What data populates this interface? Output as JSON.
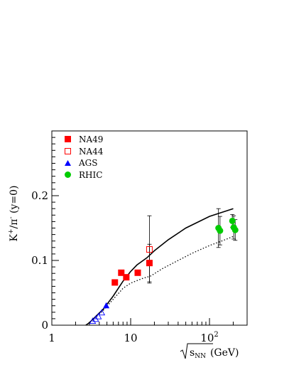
{
  "chart_data": {
    "type": "scatter",
    "title": "",
    "x_scale": "log",
    "xlim": [
      1,
      300
    ],
    "ylim": [
      0,
      0.3
    ],
    "grid": false,
    "legend_placement": "top-left",
    "xlabel": {
      "radical": "s",
      "subscript": "NN",
      "unit": "(GeV)"
    },
    "ylabel": {
      "main": "K",
      "sup1": "+",
      "mid": "/π",
      "sup2": "-",
      "tail": " (y=0)"
    },
    "x_ticks": [
      {
        "value": 1,
        "label": "1"
      },
      {
        "value": 10,
        "label": "10"
      },
      {
        "value": 100,
        "label": "10",
        "sup": "2"
      }
    ],
    "y_ticks": [
      {
        "value": 0,
        "label": "0"
      },
      {
        "value": 0.1,
        "label": "0.1"
      },
      {
        "value": 0.2,
        "label": "0.2"
      }
    ],
    "series": [
      {
        "name": "NA49",
        "marker": "filled-square",
        "color": "#ff0000",
        "points": [
          {
            "x": 6.3,
            "y": 0.066
          },
          {
            "x": 7.6,
            "y": 0.081
          },
          {
            "x": 8.8,
            "y": 0.074
          },
          {
            "x": 12.3,
            "y": 0.081
          },
          {
            "x": 17.3,
            "y": 0.096,
            "err": 0.029
          }
        ]
      },
      {
        "name": "NA44",
        "marker": "open-square",
        "color": "#ff0000",
        "points": [
          {
            "x": 17.3,
            "y": 0.117,
            "err": 0.052
          }
        ]
      },
      {
        "name": "AGS",
        "marker": "filled-triangle",
        "color": "#0000ff",
        "points": [
          {
            "x": 4.9,
            "y": 0.03
          }
        ]
      },
      {
        "name": "AGS (open)",
        "marker": "open-triangle",
        "color": "#0000ff",
        "points": [
          {
            "x": 3.3,
            "y": 0.006
          },
          {
            "x": 3.6,
            "y": 0.009
          },
          {
            "x": 3.9,
            "y": 0.013
          },
          {
            "x": 4.3,
            "y": 0.019
          }
        ]
      },
      {
        "name": "RHIC",
        "marker": "filled-circle",
        "color": "#00cc00",
        "points": [
          {
            "x": 130,
            "y": 0.15,
            "err": 0.03
          },
          {
            "x": 136,
            "y": 0.146,
            "err": 0.022
          },
          {
            "x": 195,
            "y": 0.161,
            "err": 0.01
          },
          {
            "x": 203,
            "y": 0.151,
            "err": 0.018
          },
          {
            "x": 212,
            "y": 0.147,
            "err": 0.016
          }
        ]
      }
    ],
    "curves": [
      {
        "style": "solid",
        "color": "#000000",
        "points": [
          [
            2.7,
            0.0
          ],
          [
            3.0,
            0.004
          ],
          [
            3.5,
            0.012
          ],
          [
            4.5,
            0.025
          ],
          [
            6,
            0.045
          ],
          [
            8,
            0.068
          ],
          [
            10,
            0.083
          ],
          [
            12,
            0.093
          ],
          [
            16,
            0.104
          ],
          [
            20,
            0.115
          ],
          [
            30,
            0.132
          ],
          [
            50,
            0.15
          ],
          [
            100,
            0.168
          ],
          [
            150,
            0.175
          ],
          [
            200,
            0.18
          ]
        ]
      },
      {
        "style": "dotted",
        "color": "#000000",
        "points": [
          [
            2.7,
            0.0
          ],
          [
            3.0,
            0.004
          ],
          [
            3.5,
            0.011
          ],
          [
            4.5,
            0.023
          ],
          [
            6,
            0.04
          ],
          [
            8,
            0.057
          ],
          [
            10,
            0.065
          ],
          [
            14,
            0.072
          ],
          [
            18,
            0.076
          ],
          [
            25,
            0.087
          ],
          [
            40,
            0.1
          ],
          [
            60,
            0.111
          ],
          [
            100,
            0.123
          ],
          [
            150,
            0.131
          ],
          [
            200,
            0.137
          ]
        ]
      }
    ]
  }
}
